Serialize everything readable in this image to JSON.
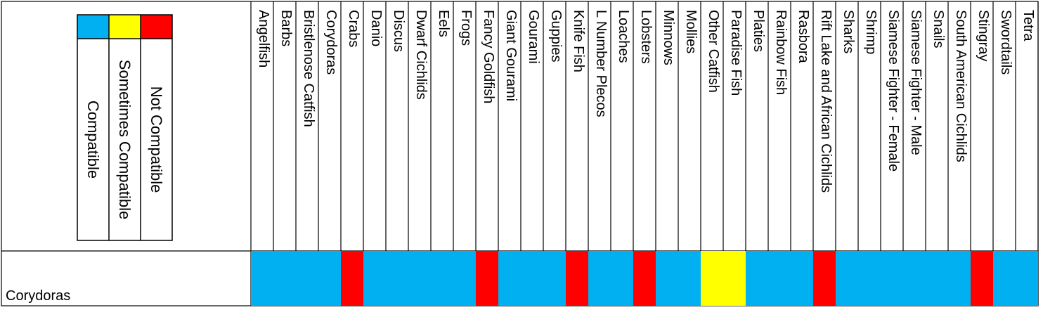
{
  "chart_data": {
    "type": "heatmap",
    "legend": {
      "placement": "top-left",
      "entries": [
        {
          "key": "compatible",
          "label": "Compatible",
          "color": "#00b0f0"
        },
        {
          "key": "sometimes",
          "label": "Sometimes Compatible",
          "color": "#ffff00"
        },
        {
          "key": "not",
          "label": "Not Compatible",
          "color": "#ff0000"
        }
      ]
    },
    "row_label": "Corydoras",
    "columns": [
      "Angelfish",
      "Barbs",
      "Bristlenose Catfish",
      "Corydoras",
      "Crabs",
      "Danio",
      "Discus",
      "Dwarf Cichlids",
      "Eels",
      "Frogs",
      "Fancy Goldfish",
      "Giant Gourami",
      "Gourami",
      "Guppies",
      "Knife Fish",
      "L Number Plecos",
      "Loaches",
      "Lobsters",
      "Minnows",
      "Mollies",
      "Other Catfish",
      "Paradise Fish",
      "Platies",
      "Rainbow Fish",
      "Rasbora",
      "Rift Lake and African Cichlids",
      "Sharks",
      "Shrimp",
      "Siamese Fighter - Female",
      "Siamese Fighter - Male",
      "Snails",
      "South American Cichlids",
      "Stingray",
      "Swordtails",
      "Tetra"
    ],
    "values": [
      "compatible",
      "compatible",
      "compatible",
      "compatible",
      "not",
      "compatible",
      "compatible",
      "compatible",
      "compatible",
      "compatible",
      "not",
      "compatible",
      "compatible",
      "compatible",
      "not",
      "compatible",
      "compatible",
      "not",
      "compatible",
      "compatible",
      "sometimes",
      "sometimes",
      "compatible",
      "compatible",
      "compatible",
      "not",
      "compatible",
      "compatible",
      "compatible",
      "compatible",
      "compatible",
      "compatible",
      "not",
      "compatible",
      "compatible"
    ]
  }
}
